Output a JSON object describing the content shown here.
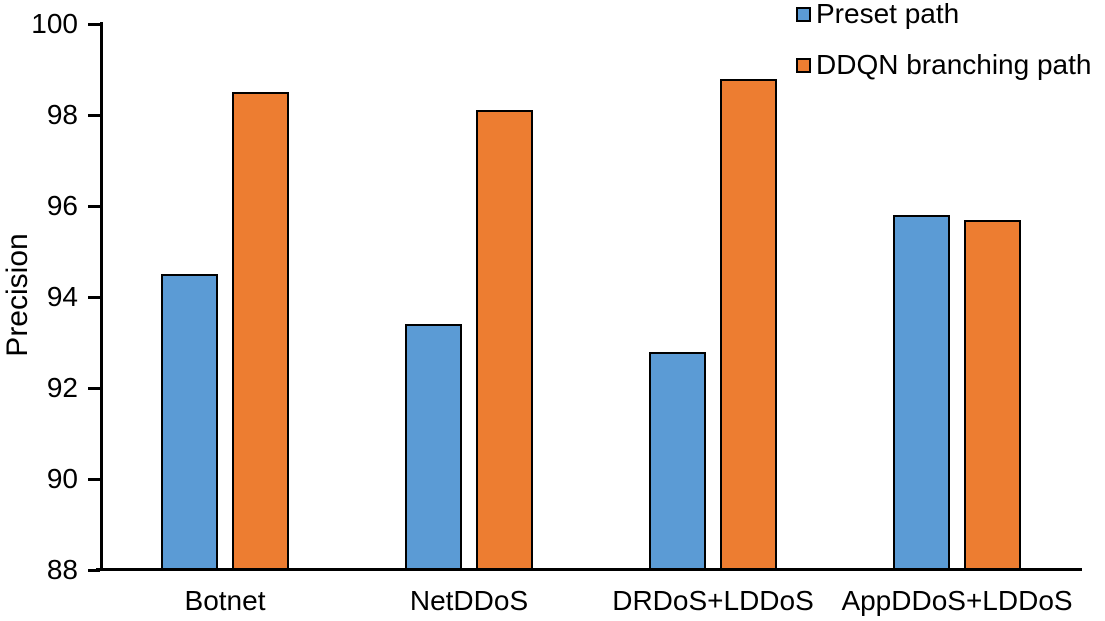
{
  "chart_data": {
    "type": "bar",
    "title": "",
    "xlabel": "",
    "ylabel": "Precision",
    "categories": [
      "Botnet",
      "NetDDoS",
      "DRDoS+LDDoS",
      "AppDDoS+LDDoS"
    ],
    "series": [
      {
        "name": "Preset path",
        "color": "#5B9BD5",
        "values": [
          94.5,
          93.4,
          92.8,
          95.8
        ]
      },
      {
        "name": "DDQN branching path",
        "color": "#ED7D31",
        "values": [
          98.5,
          98.1,
          98.8,
          95.7
        ]
      }
    ],
    "ylim": [
      88,
      100
    ],
    "yticks": [
      88,
      90,
      92,
      94,
      96,
      98,
      100
    ],
    "ytick_labels": [
      "88",
      "90",
      "92",
      "94",
      "96",
      "98",
      "100"
    ],
    "grid": false,
    "legend_position": "top-right",
    "bar_border_color": "#000000",
    "axis_color": "#000000",
    "text_color": "#000000",
    "background_color": "#FFFFFF"
  }
}
